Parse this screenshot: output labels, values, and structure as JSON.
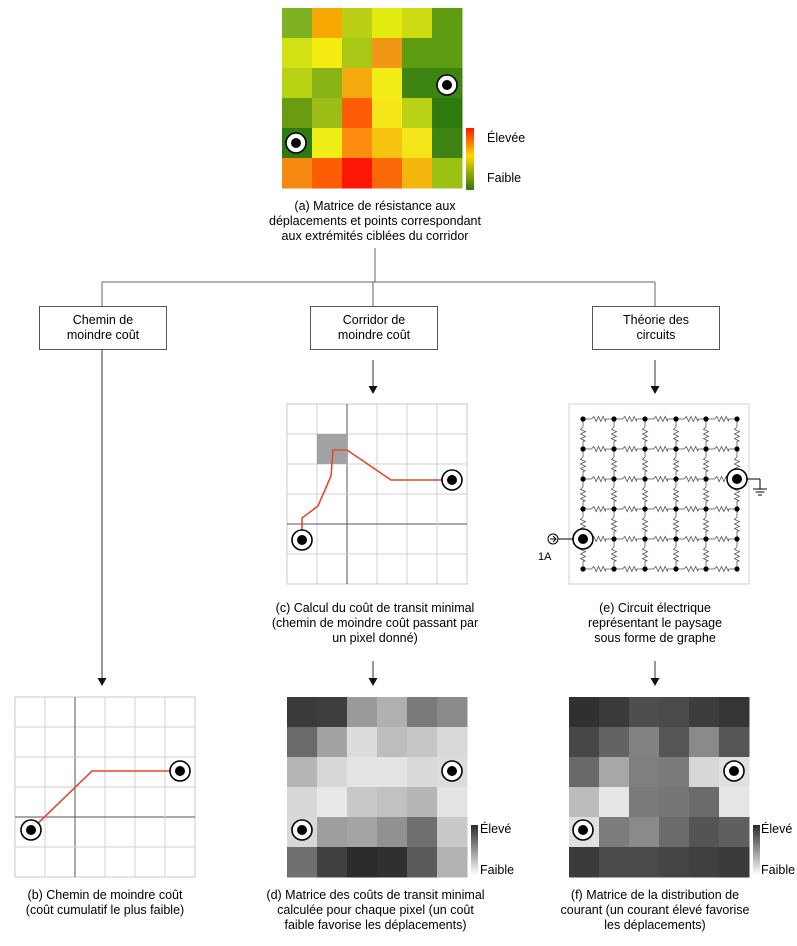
{
  "top": {
    "caption": "(a) Matrice de résistance aux\ndéplacements et points correspondant\naux extrémités ciblées du corridor",
    "legend_high": "Élevée",
    "legend_low": "Faible",
    "colors": [
      [
        "#7fb223",
        "#f6a800",
        "#b9ce15",
        "#e2ea10",
        "#ccdb12",
        "#5e9c12"
      ],
      [
        "#d2e215",
        "#f5ec12",
        "#a9c815",
        "#f29616",
        "#5e9c12",
        "#5e9c12"
      ],
      [
        "#b9d214",
        "#8ab315",
        "#f4aa0c",
        "#f0ee16",
        "#3d8412",
        "#3d8412"
      ],
      [
        "#6a9c12",
        "#9cbd15",
        "#fe5c07",
        "#f5e61a",
        "#b9d214",
        "#2e7a0c"
      ],
      [
        "#2f7a0c",
        "#f0ee16",
        "#fe8c0f",
        "#f7c30e",
        "#f5e61a",
        "#3d8412"
      ],
      [
        "#f68a10",
        "#fe5d06",
        "#fe1705",
        "#fa6908",
        "#f4b50c",
        "#9bc115"
      ]
    ]
  },
  "branches": {
    "left": "Chemin de\nmoindre coût",
    "middle": "Corridor de\nmoindre coût",
    "right": "Théorie des\ncircuits"
  },
  "panels": {
    "b_caption": "(b) Chemin de moindre coût\n(coût cumulatif le plus faible)",
    "c_caption": "(c) Calcul du coût de transit minimal\n(chemin de moindre coût passant par\nun pixel donné)",
    "d_caption": "(d) Matrice des coûts de transit minimal\ncalculée pour chaque pixel (un coût\nfaible favorise les déplacements)",
    "e_caption": "(e) Circuit électrique\nreprésentant le paysage\nsous forme de graphe",
    "e_current": "1A",
    "f_caption": "(f) Matrice de la distribution de\ncourant (un courant élevé favorise\nles déplacements)",
    "legend_high": "Élevé",
    "legend_low": "Faible",
    "d_colors": [
      [
        "#3a3a3a",
        "#3e3e3e",
        "#9a9a9a",
        "#b0b0b0",
        "#7a7a7a",
        "#8a8a8a"
      ],
      [
        "#6a6a6a",
        "#a3a3a3",
        "#dcdcdc",
        "#bdbdbd",
        "#c6c6c6",
        "#d9d9d9"
      ],
      [
        "#b5b5b5",
        "#d8d8d8",
        "#e4e4e4",
        "#e4e4e4",
        "#dadada",
        "#dcdcdc"
      ],
      [
        "#d8d8d8",
        "#e8e8e8",
        "#c8c8c8",
        "#c1c1c1",
        "#b6b6b6",
        "#e4e4e4"
      ],
      [
        "#d8d8d8",
        "#9e9e9e",
        "#a5a5a5",
        "#919191",
        "#6f6f6f",
        "#c9c9c9"
      ],
      [
        "#707070",
        "#404040",
        "#2b2b2b",
        "#303030",
        "#5a5a5a",
        "#b3b3b3"
      ]
    ],
    "f_colors": [
      [
        "#303030",
        "#3a3a3a",
        "#4e4e4e",
        "#4a4a4a",
        "#3d3d3d",
        "#353535"
      ],
      [
        "#474747",
        "#636363",
        "#828282",
        "#555555",
        "#8a8a8a",
        "#555555"
      ],
      [
        "#696969",
        "#a8a8a8",
        "#7f7f7f",
        "#7a7a7a",
        "#d7d7d7",
        "#e0e0e0"
      ],
      [
        "#bcbcbc",
        "#e6e6e6",
        "#7a7a7a",
        "#767676",
        "#6b6b6b",
        "#e6e6e6"
      ],
      [
        "#e0e0e0",
        "#7c7c7c",
        "#8a8a8a",
        "#6a6a6a",
        "#545454",
        "#5f5f5f"
      ],
      [
        "#3a3a3a",
        "#4a4a4a",
        "#4a4a4a",
        "#454545",
        "#404040",
        "#3a3a3a"
      ]
    ]
  }
}
